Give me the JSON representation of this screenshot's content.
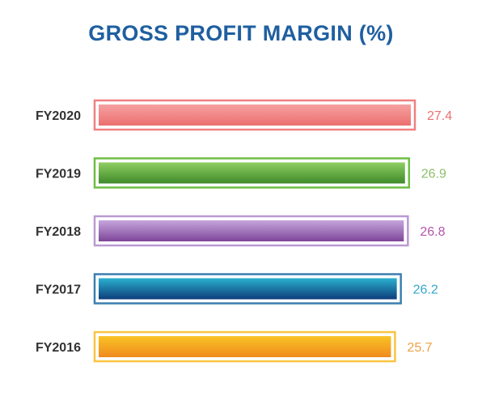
{
  "chart_data": {
    "type": "bar",
    "orientation": "horizontal",
    "title": "GROSS PROFIT MARGIN (%)",
    "categories": [
      "FY2020",
      "FY2019",
      "FY2018",
      "FY2017",
      "FY2016"
    ],
    "values": [
      27.4,
      26.9,
      26.8,
      26.2,
      25.7
    ],
    "value_labels": [
      "27.4",
      "26.9",
      "26.8",
      "26.2",
      "25.7"
    ],
    "colors": [
      {
        "light": "#f6a0a0",
        "dark": "#ec7070",
        "frame": "#f08080",
        "label": "#ec7070"
      },
      {
        "light": "#8fce62",
        "dark": "#3f8a2a",
        "frame": "#6fbd45",
        "label": "#8dbf6a"
      },
      {
        "light": "#c6a6dc",
        "dark": "#7e4599",
        "frame": "#b999d2",
        "label": "#b455ad"
      },
      {
        "light": "#2ab0cf",
        "dark": "#0e3e7a",
        "frame": "#3a7fb0",
        "label": "#35a9c9"
      },
      {
        "light": "#f9c324",
        "dark": "#f08a1e",
        "frame": "#f9c540",
        "label": "#eda245"
      }
    ],
    "xlabel": "",
    "ylabel": "",
    "grid": false,
    "legend": "none"
  }
}
